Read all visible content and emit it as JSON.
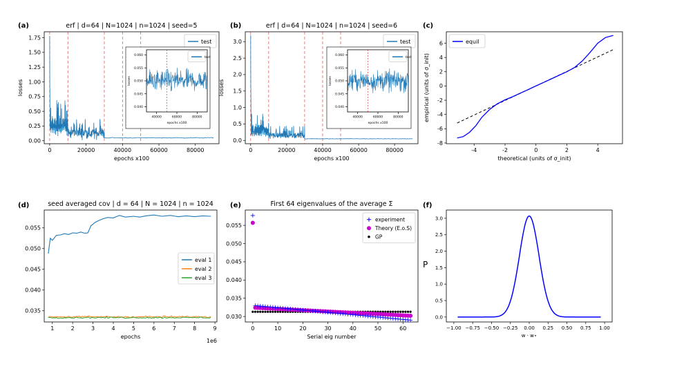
{
  "figure": {
    "colors": {
      "blue": "#1f77b4",
      "orange": "#ff7f0e",
      "green": "#2ca02c",
      "magenta": "#cc00cc",
      "pureblue": "#0000ff",
      "red": "#d62728",
      "black": "#000000"
    }
  },
  "chart_data": [
    {
      "id": "a",
      "panel_label": "(a)",
      "type": "line",
      "title": "erf  |  d=64  |  N=1024  |  n=1024  |  seed=5",
      "xlabel": "epochs x100",
      "ylabel": "losses",
      "xlim": [
        -3000,
        93000
      ],
      "ylim": [
        -0.05,
        1.85
      ],
      "xticks": [
        0,
        20000,
        40000,
        60000,
        80000
      ],
      "yticks": [
        0.0,
        0.25,
        0.5,
        0.75,
        1.0,
        1.25,
        1.5,
        1.75
      ],
      "ytick_labels": [
        "0.00",
        "0.25",
        "0.50",
        "0.75",
        "1.00",
        "1.25",
        "1.50",
        "1.75"
      ],
      "vlines": [
        0,
        10000,
        30000,
        40000,
        50000
      ],
      "legend": [
        "test"
      ],
      "series": [
        {
          "name": "test",
          "phases": [
            {
              "x": [
                0,
                10000
              ],
              "mean": 0.25,
              "spread": 0.28,
              "spike": 1.78
            },
            {
              "x": [
                10000,
                30000
              ],
              "mean": 0.13,
              "spread": 0.17
            },
            {
              "x": [
                30000,
                90000
              ],
              "mean": 0.05,
              "spread": 0.012
            }
          ]
        }
      ],
      "inset": {
        "xlabel": "epochs x100",
        "ylabel": "losses",
        "xticks": [
          40000,
          60000,
          80000
        ],
        "yticks": [
          0.04,
          0.045,
          0.05,
          0.055,
          0.06
        ],
        "ytick_labels": [
          "0.040",
          "0.045",
          "0.050",
          "0.055",
          "0.060"
        ],
        "ylim": [
          0.038,
          0.062
        ],
        "xlim": [
          30000,
          90000
        ],
        "legend": [
          "test"
        ]
      }
    },
    {
      "id": "b",
      "panel_label": "(b)",
      "type": "line",
      "title": "erf  |  d=64  |  N=1024  |  n=1024  |  seed=6",
      "xlabel": "epochs x100",
      "ylabel": "losses",
      "xlim": [
        -3000,
        93000
      ],
      "ylim": [
        -0.1,
        3.3
      ],
      "xticks": [
        0,
        20000,
        40000,
        60000,
        80000
      ],
      "yticks": [
        0.0,
        0.5,
        1.0,
        1.5,
        2.0,
        2.5,
        3.0
      ],
      "ytick_labels": [
        "0.0",
        "0.5",
        "1.0",
        "1.5",
        "2.0",
        "2.5",
        "3.0"
      ],
      "vlines": [
        0,
        10000,
        30000,
        40000,
        50000
      ],
      "legend": [
        "test"
      ],
      "series": [
        {
          "name": "test",
          "phases": [
            {
              "x": [
                0,
                10000
              ],
              "mean": 0.3,
              "spread": 0.35,
              "spike": 3.2
            },
            {
              "x": [
                10000,
                30000
              ],
              "mean": 0.15,
              "spread": 0.2
            },
            {
              "x": [
                30000,
                90000
              ],
              "mean": 0.05,
              "spread": 0.012
            }
          ]
        }
      ],
      "inset": {
        "xlabel": "epochs x100",
        "ylabel": "losses",
        "xticks": [
          40000,
          60000,
          80000
        ],
        "yticks": [
          0.04,
          0.045,
          0.05,
          0.055,
          0.06
        ],
        "ytick_labels": [
          "0.040",
          "0.045",
          "0.050",
          "0.055",
          "0.060"
        ],
        "ylim": [
          0.038,
          0.062
        ],
        "xlim": [
          30000,
          90000
        ],
        "legend": [
          "test"
        ]
      }
    },
    {
      "id": "c",
      "panel_label": "(c)",
      "type": "line",
      "title": "",
      "xlabel": "theoretical (units of σ_init)",
      "ylabel": "empirical (units of σ_init)",
      "xlim": [
        -5.8,
        5.6
      ],
      "ylim": [
        -8.1,
        7.6
      ],
      "xticks": [
        -4,
        -2,
        0,
        2,
        4
      ],
      "yticks": [
        -8,
        -6,
        -4,
        -2,
        0,
        2,
        4,
        6
      ],
      "legend": [
        "equil"
      ],
      "series": [
        {
          "name": "equil",
          "x": [
            -5.1,
            -4.7,
            -4.3,
            -3.9,
            -3.5,
            -3.0,
            -2.5,
            -2.0,
            -1.5,
            -1.0,
            -0.5,
            0,
            0.5,
            1.0,
            1.5,
            2.0,
            2.5,
            3.0,
            3.5,
            4.0,
            4.5,
            5.0
          ],
          "y": [
            -7.3,
            -7.1,
            -6.5,
            -5.6,
            -4.4,
            -3.3,
            -2.5,
            -1.95,
            -1.5,
            -1.0,
            -0.5,
            0,
            0.5,
            1.0,
            1.5,
            2.0,
            2.6,
            3.5,
            4.7,
            6.0,
            6.8,
            7.1
          ]
        },
        {
          "name": "reference",
          "style": "dashed",
          "x": [
            -5.1,
            5.1
          ],
          "y": [
            -5.2,
            5.2
          ]
        }
      ]
    },
    {
      "id": "d",
      "panel_label": "(d)",
      "type": "line",
      "title": "seed averaged cov | d = 64 | N = 1024 | n = 1024",
      "xlabel": "epochs",
      "ylabel": "",
      "x_offset_label": "1e6",
      "xlim": [
        0.6,
        9.1
      ],
      "ylim": [
        0.0323,
        0.0593
      ],
      "xticks": [
        1,
        2,
        3,
        4,
        5,
        6,
        7,
        8,
        9
      ],
      "yticks": [
        0.035,
        0.04,
        0.045,
        0.05,
        0.055
      ],
      "ytick_labels": [
        "0.035",
        "0.040",
        "0.045",
        "0.050",
        "0.055"
      ],
      "legend": [
        "eval 1",
        "eval 2",
        "eval 3"
      ],
      "series": [
        {
          "name": "eval 1",
          "x": [
            0.8,
            0.9,
            1.0,
            1.2,
            1.4,
            1.6,
            1.8,
            2.0,
            2.2,
            2.4,
            2.6,
            2.75,
            2.9,
            3.1,
            3.3,
            3.5,
            3.7,
            4.0,
            4.3,
            4.6,
            5.0,
            5.3,
            5.6,
            6.0,
            6.4,
            6.8,
            7.2,
            7.6,
            8.0,
            8.4,
            8.8
          ],
          "y": [
            0.0488,
            0.0525,
            0.052,
            0.0532,
            0.0533,
            0.0536,
            0.0534,
            0.0538,
            0.0537,
            0.054,
            0.0537,
            0.0538,
            0.0555,
            0.0563,
            0.0568,
            0.0572,
            0.0575,
            0.0574,
            0.058,
            0.0576,
            0.0578,
            0.0576,
            0.0579,
            0.0581,
            0.0578,
            0.058,
            0.0577,
            0.0579,
            0.0577,
            0.0579,
            0.0578
          ]
        },
        {
          "name": "eval 2",
          "base": 0.03355,
          "noise": 0.00018,
          "x": [
            0.8,
            8.8
          ]
        },
        {
          "name": "eval 3",
          "base": 0.03335,
          "noise": 0.00016,
          "x": [
            0.8,
            8.8
          ]
        }
      ]
    },
    {
      "id": "e",
      "panel_label": "(e)",
      "type": "scatter",
      "title": "First 64 eigenvalues of the average Σ",
      "xlabel": "Serial eig number",
      "ylabel": "",
      "xlim": [
        -3,
        66
      ],
      "ylim": [
        0.0285,
        0.0592
      ],
      "xticks": [
        0,
        10,
        20,
        30,
        40,
        50,
        60
      ],
      "yticks": [
        0.03,
        0.035,
        0.04,
        0.045,
        0.05,
        0.055
      ],
      "ytick_labels": [
        "0.030",
        "0.035",
        "0.040",
        "0.045",
        "0.050",
        "0.055"
      ],
      "legend": [
        "experiment",
        "Theory (E.o.S)",
        "GP"
      ],
      "series": [
        {
          "name": "experiment",
          "marker": "+",
          "first": 0.0577,
          "start": 0.033,
          "end": 0.029,
          "count": 64
        },
        {
          "name": "Theory (E.o.S)",
          "marker": "o",
          "first": 0.0557,
          "start": 0.0324,
          "end": 0.0302,
          "count": 64
        },
        {
          "name": "GP",
          "marker": ".",
          "value": 0.0313,
          "count": 64
        }
      ]
    },
    {
      "id": "f",
      "panel_label": "(f)",
      "type": "line",
      "title": "",
      "xlabel": "w · w⋆",
      "ylabel": "P",
      "xlim": [
        -1.1,
        1.1
      ],
      "ylim": [
        -0.15,
        3.25
      ],
      "xticks": [
        -1.0,
        -0.75,
        -0.5,
        -0.25,
        0.0,
        0.25,
        0.5,
        0.75,
        1.0
      ],
      "xtick_labels": [
        "−1.00",
        "−0.75",
        "−0.50",
        "−0.25",
        "0.00",
        "0.25",
        "0.50",
        "0.75",
        "1.00"
      ],
      "yticks": [
        0.0,
        0.5,
        1.0,
        1.5,
        2.0,
        2.5,
        3.0
      ],
      "ytick_labels": [
        "0.0",
        "0.5",
        "1.0",
        "1.5",
        "2.0",
        "2.5",
        "3.0"
      ],
      "series": [
        {
          "name": "P",
          "peak": 3.07,
          "sigma": 0.13,
          "x": [
            -0.95,
            0.95
          ]
        }
      ]
    }
  ]
}
